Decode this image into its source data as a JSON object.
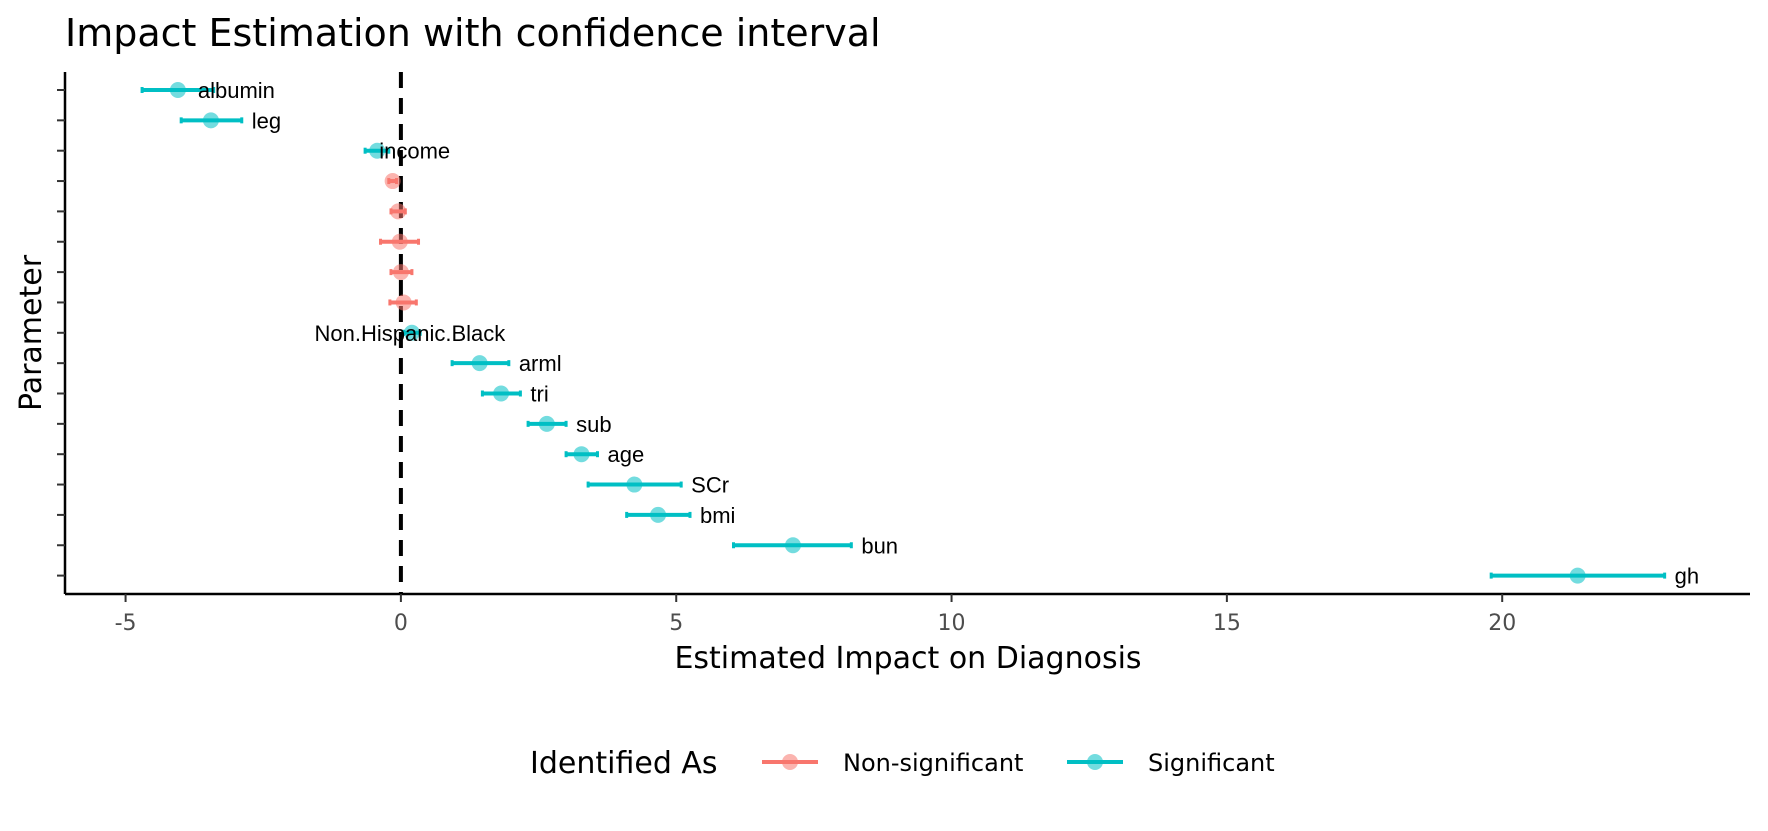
{
  "chart_data": {
    "type": "scatter",
    "subtype": "forest-plot",
    "title": "Impact Estimation with confidence interval",
    "xlabel": "Estimated Impact on Diagnosis",
    "ylabel": "Parameter",
    "xlim": [
      -6.1,
      24.5
    ],
    "x_ticks": [
      -5,
      0,
      5,
      10,
      15,
      20
    ],
    "x_tick_labels": [
      "-5",
      "0",
      "5",
      "10",
      "15",
      "20"
    ],
    "reference_line": {
      "x": 0,
      "style": "dashed"
    },
    "grid": false,
    "legend": {
      "title": "Identified As",
      "position": "bottom",
      "entries": [
        {
          "label": "Non-significant",
          "color": "#F8766D"
        },
        {
          "label": "Significant",
          "color": "#00BFC4"
        }
      ]
    },
    "colors": {
      "Non-significant": "#F8766D",
      "Significant": "#00BFC4"
    },
    "points": [
      {
        "label": "albumin",
        "estimate": -4.05,
        "low": -4.7,
        "high": -3.4,
        "group": "Significant"
      },
      {
        "label": "leg",
        "estimate": -3.45,
        "low": -3.99,
        "high": -2.89,
        "group": "Significant"
      },
      {
        "label": "income",
        "estimate": -0.43,
        "low": -0.65,
        "high": -0.22,
        "group": "Significant"
      },
      {
        "label": "",
        "estimate": -0.15,
        "low": -0.22,
        "high": -0.08,
        "group": "Non-significant"
      },
      {
        "label": "",
        "estimate": -0.05,
        "low": -0.18,
        "high": 0.08,
        "group": "Non-significant"
      },
      {
        "label": "",
        "estimate": -0.02,
        "low": -0.37,
        "high": 0.32,
        "group": "Non-significant"
      },
      {
        "label": "",
        "estimate": 0.0,
        "low": -0.18,
        "high": 0.2,
        "group": "Non-significant"
      },
      {
        "label": "",
        "estimate": 0.05,
        "low": -0.2,
        "high": 0.28,
        "group": "Non-significant"
      },
      {
        "label": "Non.Hispanic.Black",
        "estimate": 0.2,
        "low": 0.05,
        "high": 0.35,
        "group": "Significant"
      },
      {
        "label": "arml",
        "estimate": 1.43,
        "low": 0.93,
        "high": 1.96,
        "group": "Significant"
      },
      {
        "label": "tri",
        "estimate": 1.82,
        "low": 1.48,
        "high": 2.17,
        "group": "Significant"
      },
      {
        "label": "sub",
        "estimate": 2.65,
        "low": 2.31,
        "high": 3.0,
        "group": "Significant"
      },
      {
        "label": "age",
        "estimate": 3.28,
        "low": 3.0,
        "high": 3.57,
        "group": "Significant"
      },
      {
        "label": "SCr",
        "estimate": 4.24,
        "low": 3.4,
        "high": 5.09,
        "group": "Significant"
      },
      {
        "label": "bmi",
        "estimate": 4.67,
        "low": 4.1,
        "high": 5.25,
        "group": "Significant"
      },
      {
        "label": "bun",
        "estimate": 7.12,
        "low": 6.04,
        "high": 8.18,
        "group": "Significant"
      },
      {
        "label": "gh",
        "estimate": 21.37,
        "low": 19.8,
        "high": 22.95,
        "group": "Significant"
      }
    ]
  }
}
